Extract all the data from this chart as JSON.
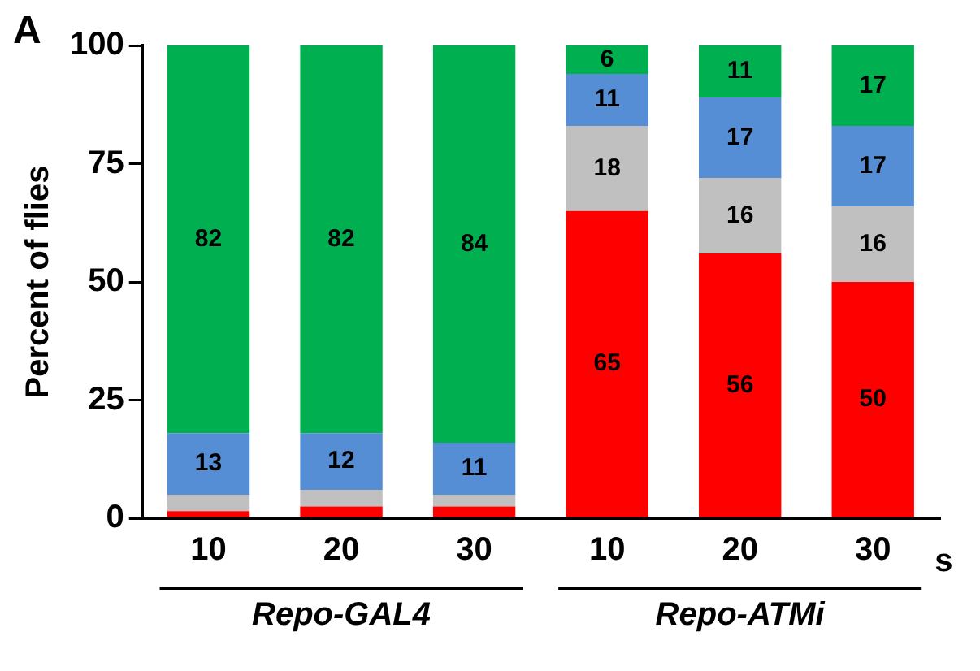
{
  "chart_data": {
    "type": "bar",
    "stacked": true,
    "ylabel": "Percent of flies",
    "categories": [
      "10",
      "20",
      "30",
      "10",
      "20",
      "30"
    ],
    "series": [
      {
        "color": "#ff0000",
        "values": [
          1.5,
          2.5,
          2.5,
          65,
          56,
          50
        ],
        "value_labels": [
          null,
          null,
          null,
          "65",
          "56",
          "50"
        ]
      },
      {
        "color": "#c0c0c0",
        "values": [
          3.5,
          3.5,
          2.5,
          18,
          16,
          16
        ],
        "value_labels": [
          null,
          null,
          null,
          "18",
          "16",
          "16"
        ]
      },
      {
        "color": "#558ed5",
        "values": [
          13,
          12,
          11,
          11,
          17,
          17
        ],
        "value_labels": [
          "13",
          "12",
          "11",
          "11",
          "17",
          "17"
        ]
      },
      {
        "color": "#00b050",
        "values": [
          82,
          82,
          84,
          6,
          11,
          17
        ],
        "value_labels": [
          "82",
          "82",
          "84",
          "6",
          "11",
          "17"
        ]
      }
    ],
    "ylim": [
      0,
      100
    ],
    "yticks": [
      0,
      25,
      50,
      75,
      100
    ],
    "grid": false,
    "legend": false,
    "annotations": [
      "A",
      "s",
      "Repo-GAL4",
      "Repo-ATMi"
    ]
  }
}
